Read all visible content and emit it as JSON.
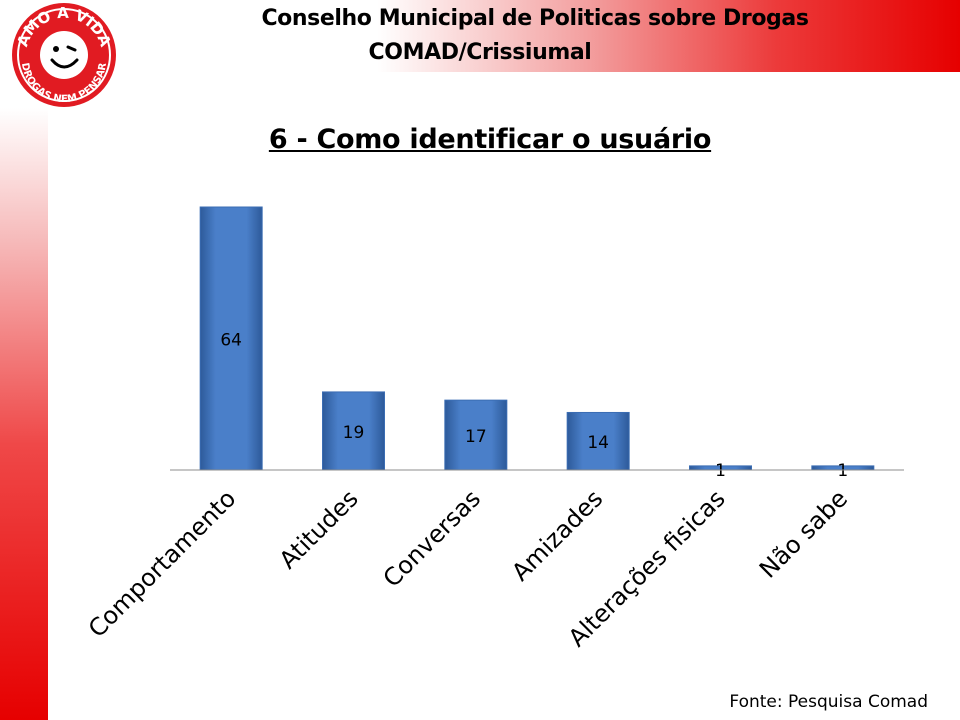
{
  "header": {
    "line1": "Conselho Municipal de Politicas sobre Drogas",
    "line2": "COMAD/Crissiumal"
  },
  "logo": {
    "top_text": "AMO A VIDA",
    "bottom_text": "DROGAS NEM PENSAR"
  },
  "source": "Fonte: Pesquisa Comad",
  "colors": {
    "bar": "#4a7fc9",
    "bar_dark": "#2d5a9a",
    "accent_red": "#e60000"
  },
  "chart_data": {
    "type": "bar",
    "title": "6 - Como identificar o usuário",
    "categories": [
      "Comportamento",
      "Atitudes",
      "Conversas",
      "Amizades",
      "Alterações fisicas",
      "Não sabe"
    ],
    "values": [
      64,
      19,
      17,
      14,
      1,
      1
    ],
    "xlabel": "",
    "ylabel": "",
    "ylim": [
      0,
      64
    ],
    "grid": false,
    "legend": "none",
    "data_labels": true
  }
}
